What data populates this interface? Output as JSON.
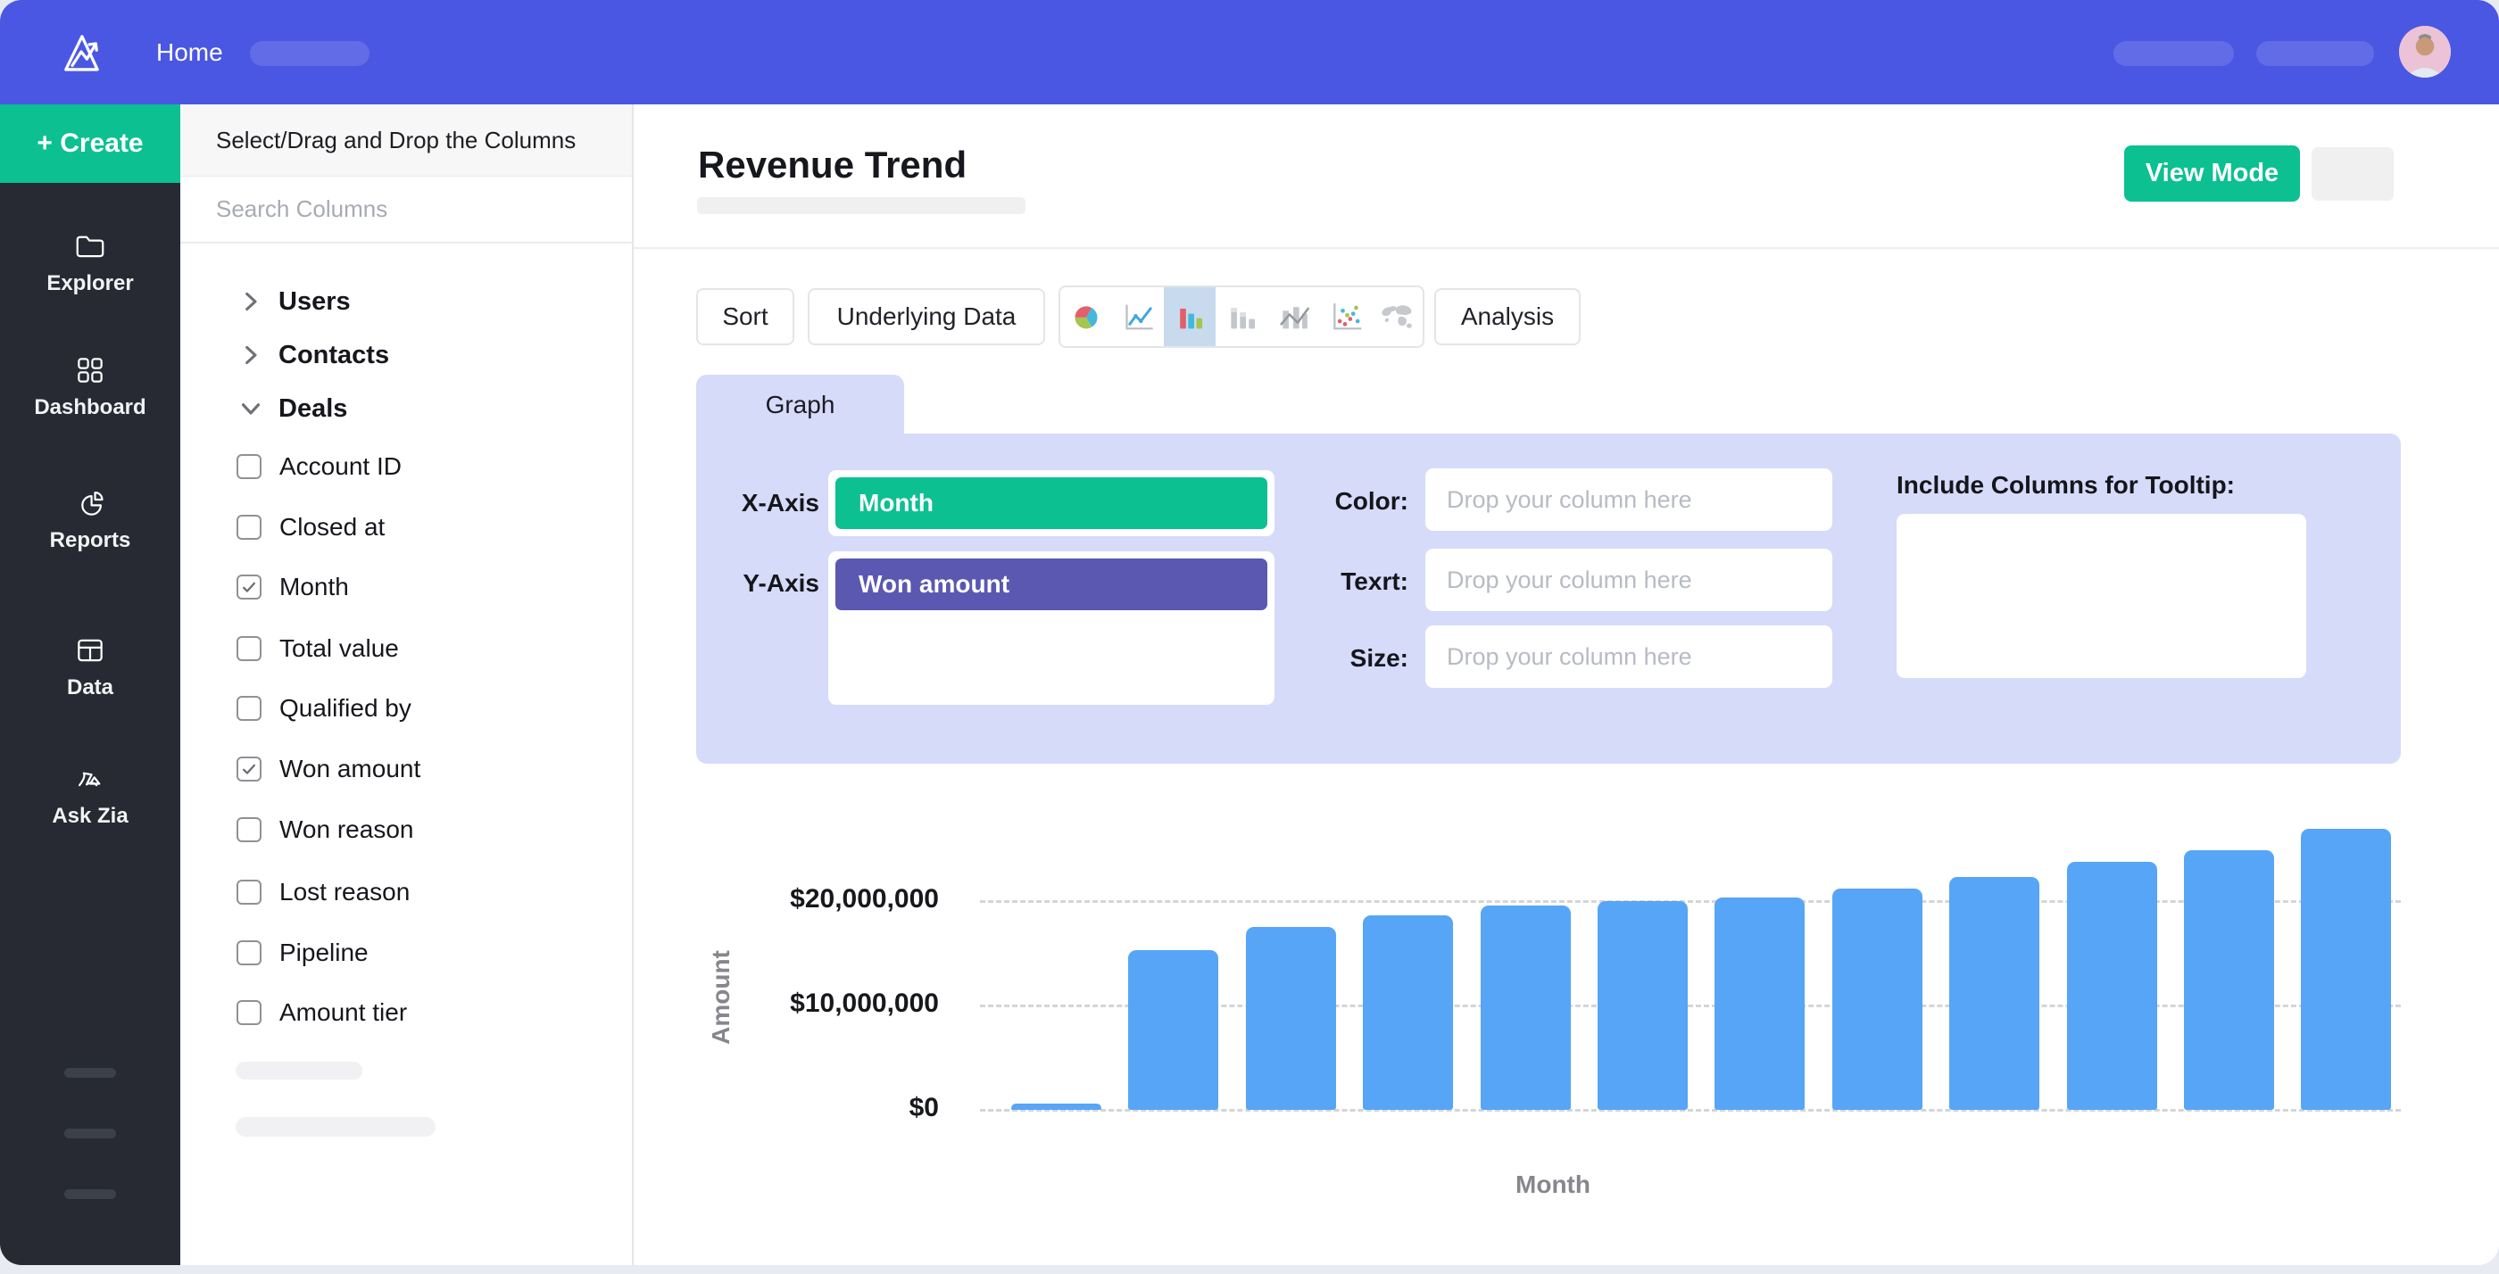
{
  "topbar": {
    "home_label": "Home",
    "nav_placeholder_count": 1,
    "right_placeholder_count": 2
  },
  "sidebar": {
    "create_label": "+ Create",
    "items": [
      {
        "icon": "folder",
        "label": "Explorer"
      },
      {
        "icon": "grid",
        "label": "Dashboard"
      },
      {
        "icon": "pie",
        "label": "Reports"
      },
      {
        "icon": "table",
        "label": "Data"
      },
      {
        "icon": "zia",
        "label": "Ask Zia"
      }
    ],
    "skeleton_count": 3
  },
  "columns_panel": {
    "header": "Select/Drag and Drop the Columns",
    "search_placeholder": "Search Columns",
    "groups": [
      {
        "name": "Users",
        "expanded": false
      },
      {
        "name": "Contacts",
        "expanded": false
      },
      {
        "name": "Deals",
        "expanded": true
      }
    ],
    "fields": [
      {
        "label": "Account ID",
        "checked": false
      },
      {
        "label": "Closed at",
        "checked": false
      },
      {
        "label": "Month",
        "checked": true
      },
      {
        "label": "Total value",
        "checked": false
      },
      {
        "label": "Qualified by",
        "checked": false
      },
      {
        "label": "Won amount",
        "checked": true
      },
      {
        "label": "Won reason",
        "checked": false
      },
      {
        "label": "Lost reason",
        "checked": false
      },
      {
        "label": "Pipeline",
        "checked": false
      },
      {
        "label": "Amount tier",
        "checked": false
      }
    ],
    "skeleton_count": 2
  },
  "main": {
    "title": "Revenue Trend",
    "view_mode_label": "View Mode",
    "toolbar": {
      "sort_label": "Sort",
      "underlying_label": "Underlying Data",
      "analysis_label": "Analysis",
      "chart_types": [
        "pie-chart",
        "line-chart",
        "bar-chart",
        "column-chart",
        "bar-line-chart",
        "scatter-chart",
        "map-chart"
      ],
      "selected_chart_type": "bar-chart"
    },
    "graph_tab_label": "Graph",
    "config": {
      "x_axis_label": "X-Axis",
      "x_chip": "Month",
      "y_axis_label": "Y-Axis",
      "y_chip": "Won amount",
      "drop_rows": [
        "Color:",
        "Texrt:",
        "Size:"
      ],
      "drop_placeholder": "Drop your column here",
      "tooltip_label": "Include Columns for Tooltip:"
    }
  },
  "chart_data": {
    "type": "bar",
    "title": "Revenue Trend",
    "xlabel": "Month",
    "ylabel": "Amount",
    "categories": [
      "",
      "",
      "",
      "",
      "",
      "",
      "",
      "",
      "",
      "",
      "",
      ""
    ],
    "values": [
      600000,
      15300000,
      17500000,
      18600000,
      19600000,
      20000000,
      20300000,
      21200000,
      22300000,
      23800000,
      24900000,
      26900000
    ],
    "yticks": [
      {
        "label": "$0",
        "value": 0
      },
      {
        "label": "$10,000,000",
        "value": 10000000
      },
      {
        "label": "$20,000,000",
        "value": 20000000
      }
    ],
    "ylim": [
      0,
      28000000
    ],
    "grid": "dashed-horizontal",
    "legend": false,
    "bar_color": "#57a5f6"
  },
  "colors": {
    "topbar_blue": "#4a57e3",
    "accent_green": "#0cc091",
    "sidebar_dark": "#272a33",
    "panel_lavender": "#d6dbfa",
    "chip_purple": "#5b58b1",
    "selected_icon_bg": "#c8dbee",
    "bar_blue": "#57a5f6"
  }
}
